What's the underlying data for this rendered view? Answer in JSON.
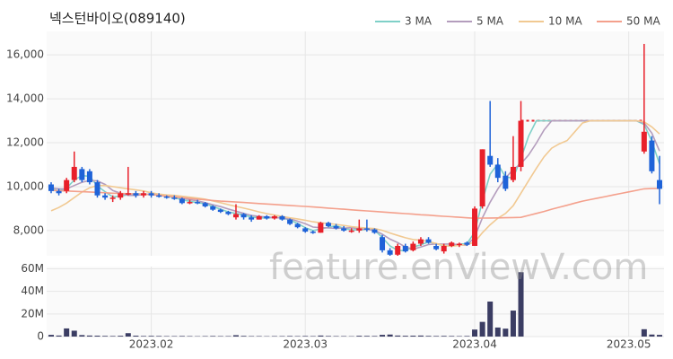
{
  "chart_data": {
    "type": "candlestick",
    "title": "넥스턴바이오(089140)",
    "watermark": "feature.enViewV.com",
    "categories": [
      null,
      null,
      null,
      null,
      null,
      null,
      null,
      null,
      null,
      null,
      null,
      null,
      null,
      "2023.02",
      null,
      null,
      null,
      null,
      null,
      null,
      null,
      null,
      null,
      null,
      null,
      null,
      null,
      null,
      null,
      null,
      null,
      null,
      null,
      "2023.03",
      null,
      null,
      null,
      null,
      null,
      null,
      null,
      null,
      null,
      null,
      null,
      null,
      null,
      null,
      null,
      null,
      null,
      null,
      null,
      null,
      null,
      "2023.04",
      null,
      null,
      null,
      null,
      null,
      null,
      null,
      null,
      null,
      null,
      null,
      null,
      null,
      null,
      null,
      null,
      null,
      null,
      null,
      "2023.05",
      null,
      null,
      null,
      null
    ],
    "open": [
      10100,
      9800,
      9800,
      10300,
      10800,
      10700,
      10200,
      9600,
      9500,
      9500,
      9700,
      9700,
      9600,
      9700,
      9600,
      9550,
      9500,
      9450,
      9250,
      9300,
      9250,
      9100,
      8950,
      8850,
      8600,
      8750,
      8600,
      8500,
      8650,
      8550,
      8650,
      8500,
      8300,
      8100,
      7950,
      7900,
      8350,
      8200,
      8100,
      8000,
      8000,
      8100,
      8050,
      7700,
      7100,
      6900,
      7300,
      7100,
      7400,
      7600,
      7300,
      7050,
      7300,
      7350,
      7450,
      7300,
      9100,
      11400,
      11000,
      10500,
      10300,
      10900,
      null,
      null,
      null,
      null,
      null,
      null,
      null,
      null,
      null,
      null,
      null,
      null,
      null,
      null,
      null,
      11600,
      12100,
      10300
    ],
    "high": [
      10200,
      9900,
      10400,
      11600,
      10900,
      10800,
      10300,
      9700,
      9600,
      9800,
      10900,
      9800,
      9800,
      9800,
      9700,
      9600,
      9600,
      9500,
      9400,
      9400,
      9300,
      9150,
      9000,
      8900,
      9200,
      8800,
      8700,
      8700,
      8700,
      8700,
      8700,
      8550,
      8350,
      8150,
      8000,
      8400,
      8400,
      8300,
      8200,
      8100,
      8500,
      8500,
      8100,
      7800,
      7200,
      7400,
      7400,
      7500,
      7700,
      7700,
      7400,
      7400,
      7500,
      7450,
      7500,
      9100,
      11700,
      13900,
      11300,
      10700,
      12300,
      13900,
      null,
      null,
      null,
      null,
      null,
      null,
      null,
      null,
      null,
      null,
      null,
      null,
      null,
      null,
      null,
      16500,
      12300,
      11400
    ],
    "low": [
      9700,
      9600,
      9700,
      10200,
      10200,
      10100,
      9500,
      9400,
      9300,
      9400,
      9600,
      9500,
      9500,
      9500,
      9500,
      9450,
      9400,
      9200,
      9200,
      9200,
      9050,
      8900,
      8800,
      8700,
      8500,
      8500,
      8400,
      8500,
      8500,
      8500,
      8450,
      8250,
      8100,
      7900,
      7850,
      7900,
      8150,
      8050,
      7950,
      7900,
      7900,
      7950,
      7850,
      7000,
      6850,
      6850,
      7000,
      7050,
      7300,
      7400,
      7100,
      6950,
      7250,
      7250,
      7300,
      7300,
      9000,
      10900,
      10200,
      9800,
      10200,
      10700,
      null,
      null,
      null,
      null,
      null,
      null,
      null,
      null,
      null,
      null,
      null,
      null,
      null,
      null,
      null,
      11500,
      10600,
      9200
    ],
    "close": [
      9800,
      9700,
      10300,
      10900,
      10300,
      10200,
      9600,
      9500,
      9500,
      9700,
      9700,
      9600,
      9700,
      9600,
      9550,
      9500,
      9450,
      9250,
      9300,
      9250,
      9100,
      8950,
      8850,
      8750,
      8750,
      8600,
      8500,
      8650,
      8550,
      8650,
      8500,
      8300,
      8150,
      7950,
      7900,
      8350,
      8200,
      8100,
      8000,
      8000,
      8100,
      8050,
      7900,
      7100,
      6900,
      7300,
      7050,
      7400,
      7600,
      7450,
      7150,
      7300,
      7450,
      7400,
      7350,
      9000,
      11700,
      11000,
      10400,
      9900,
      10900,
      13000,
      null,
      null,
      null,
      null,
      null,
      null,
      null,
      null,
      null,
      null,
      null,
      null,
      null,
      null,
      null,
      12500,
      10700,
      9900
    ],
    "up_color": "#e8202a",
    "down_color": "#1f63d8",
    "halt_color": "#e8202a",
    "series": [
      {
        "name": "3 MA",
        "color": "#7fd0c8",
        "values": [
          9900,
          9800,
          9930,
          10300,
          10500,
          10470,
          10030,
          9770,
          9530,
          9570,
          9630,
          9670,
          9670,
          9630,
          9620,
          9550,
          9500,
          9400,
          9330,
          9270,
          9220,
          9100,
          8970,
          8850,
          8780,
          8700,
          8620,
          8580,
          8570,
          8600,
          8570,
          8480,
          8320,
          8130,
          8000,
          8070,
          8150,
          8220,
          8100,
          8030,
          8030,
          8050,
          8020,
          7680,
          7300,
          7100,
          7080,
          7250,
          7350,
          7480,
          7400,
          7300,
          7300,
          7380,
          7400,
          7920,
          9350,
          10570,
          11030,
          10430,
          10400,
          11270,
          12300,
          13000,
          13000,
          13000,
          13000,
          13000,
          13000,
          13000,
          13000,
          13000,
          13000,
          13000,
          13000,
          13000,
          13000,
          12830,
          12070,
          11030
        ]
      },
      {
        "name": "5 MA",
        "color": "#b49dbd",
        "values": [
          9950,
          9900,
          9900,
          10050,
          10200,
          10280,
          10260,
          10100,
          9820,
          9700,
          9600,
          9600,
          9640,
          9660,
          9630,
          9590,
          9560,
          9470,
          9410,
          9350,
          9270,
          9170,
          9090,
          8980,
          8880,
          8780,
          8690,
          8650,
          8610,
          8590,
          8570,
          8530,
          8430,
          8310,
          8160,
          8130,
          8120,
          8100,
          8110,
          8130,
          8080,
          8050,
          8010,
          7830,
          7610,
          7450,
          7250,
          7150,
          7250,
          7360,
          7390,
          7380,
          7390,
          7350,
          7330,
          7700,
          8580,
          9290,
          9890,
          10400,
          10780,
          11040,
          11440,
          11980,
          12580,
          13000,
          13000,
          13000,
          13000,
          13000,
          13000,
          13000,
          13000,
          13000,
          13000,
          13000,
          13000,
          12900,
          12440,
          11620
        ]
      },
      {
        "name": "10 MA",
        "color": "#f1c992",
        "values": [
          8900,
          9050,
          9250,
          9500,
          9750,
          9950,
          10050,
          10050,
          10000,
          9950,
          9900,
          9850,
          9800,
          9720,
          9660,
          9620,
          9600,
          9560,
          9520,
          9480,
          9430,
          9350,
          9270,
          9180,
          9100,
          9020,
          8940,
          8850,
          8770,
          8700,
          8640,
          8580,
          8530,
          8470,
          8400,
          8350,
          8320,
          8280,
          8230,
          8180,
          8140,
          8110,
          8090,
          8010,
          7890,
          7780,
          7670,
          7590,
          7560,
          7500,
          7410,
          7320,
          7280,
          7330,
          7360,
          7470,
          7900,
          8260,
          8560,
          8780,
          9130,
          9700,
          10270,
          10830,
          11360,
          11750,
          11950,
          12100,
          12500,
          12900,
          13000,
          13000,
          13000,
          13000,
          13000,
          13000,
          13000,
          12950,
          12720,
          12400
        ]
      },
      {
        "name": "50 MA",
        "color": "#f4a08c",
        "values": [
          9830,
          9815,
          9800,
          9785,
          9770,
          9755,
          9740,
          9720,
          9700,
          9690,
          9680,
          9665,
          9650,
          9630,
          9600,
          9565,
          9530,
          9500,
          9465,
          9430,
          9400,
          9370,
          9340,
          9320,
          9300,
          9280,
          9255,
          9230,
          9210,
          9190,
          9165,
          9145,
          9120,
          9100,
          9075,
          9050,
          9020,
          8995,
          8970,
          8945,
          8920,
          8895,
          8870,
          8845,
          8820,
          8795,
          8770,
          8745,
          8720,
          8700,
          8675,
          8650,
          8630,
          8605,
          8580,
          8560,
          8565,
          8570,
          8575,
          8585,
          8590,
          8600,
          8690,
          8780,
          8870,
          8970,
          9060,
          9150,
          9250,
          9340,
          9410,
          9480,
          9550,
          9620,
          9690,
          9760,
          9830,
          9900,
          9910,
          9920
        ]
      }
    ],
    "legend": "top-right",
    "grid": true,
    "ylim": [
      6850,
      17070
    ],
    "yticks": [
      {
        "value": 8000,
        "label": "8,000"
      },
      {
        "value": 10000,
        "label": "10,000"
      },
      {
        "value": 12000,
        "label": "12,000"
      },
      {
        "value": 14000,
        "label": "14,000"
      },
      {
        "value": 16000,
        "label": "16,000"
      }
    ],
    "volume": {
      "color": "#3b3d63",
      "values": [
        1500000,
        900000,
        7200000,
        5200000,
        1300000,
        900000,
        800000,
        600000,
        500000,
        700000,
        3000000,
        800000,
        500000,
        600000,
        500000,
        400000,
        400000,
        500000,
        400000,
        300000,
        400000,
        500000,
        400000,
        400000,
        1200000,
        600000,
        400000,
        400000,
        300000,
        400000,
        400000,
        500000,
        400000,
        500000,
        400000,
        900000,
        500000,
        400000,
        400000,
        300000,
        700000,
        600000,
        500000,
        1500000,
        1800000,
        900000,
        700000,
        800000,
        900000,
        600000,
        500000,
        600000,
        500000,
        400000,
        500000,
        6200000,
        13000000,
        31000000,
        8000000,
        7000000,
        23000000,
        57000000,
        null,
        null,
        null,
        null,
        null,
        null,
        null,
        null,
        null,
        null,
        null,
        null,
        null,
        null,
        null,
        6500000,
        1800000,
        1500000
      ],
      "ylim": [
        0,
        62000000
      ],
      "yticks": [
        0,
        {
          "value": 20000000,
          "label": "20M"
        },
        {
          "value": 40000000,
          "label": "40M"
        },
        {
          "value": 60000000,
          "label": "60M"
        }
      ]
    }
  }
}
